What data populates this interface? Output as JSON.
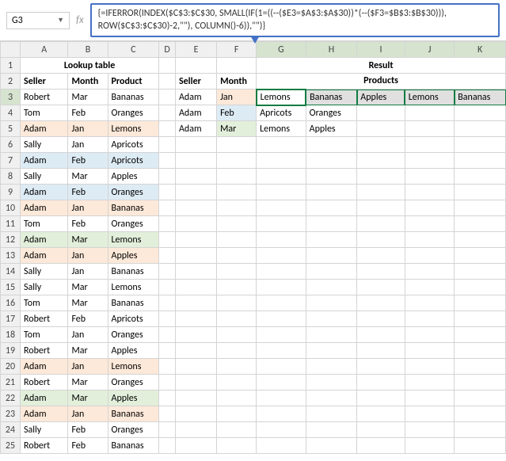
{
  "name_box": "G3",
  "formula": "{=IFERROR(INDEX($C$3:$C$30, SMALL(IF(1=((--($E3=$A$3:$A$30))*(--($F3=$B$3:$B$30))), ROW($C$3:$C$30)-2,\"\"), COLUMN()-6)),\"\")}",
  "columns": [
    "",
    "A",
    "B",
    "C",
    "D",
    "E",
    "F",
    "G",
    "H",
    "I",
    "J",
    "K"
  ],
  "title_lookup": "Lookup table",
  "title_result": "Result",
  "headers_lookup": [
    "Seller",
    "Month",
    "Product"
  ],
  "headers_result_left": [
    "Seller",
    "Month"
  ],
  "headers_result_right": "Products",
  "lookup_rows": [
    {
      "r": 3,
      "s": "Robert",
      "m": "Mar",
      "p": "Bananas",
      "hl": ""
    },
    {
      "r": 4,
      "s": "Tom",
      "m": "Feb",
      "p": "Oranges",
      "hl": ""
    },
    {
      "r": 5,
      "s": "Adam",
      "m": "Jan",
      "p": "Lemons",
      "hl": "hl-orange"
    },
    {
      "r": 6,
      "s": "Sally",
      "m": "Jan",
      "p": "Apricots",
      "hl": ""
    },
    {
      "r": 7,
      "s": "Adam",
      "m": "Feb",
      "p": "Apricots",
      "hl": "hl-blue"
    },
    {
      "r": 8,
      "s": "Sally",
      "m": "Mar",
      "p": "Apples",
      "hl": ""
    },
    {
      "r": 9,
      "s": "Adam",
      "m": "Feb",
      "p": "Oranges",
      "hl": "hl-blue"
    },
    {
      "r": 10,
      "s": "Adam",
      "m": "Jan",
      "p": "Bananas",
      "hl": "hl-orange"
    },
    {
      "r": 11,
      "s": "Tom",
      "m": "Feb",
      "p": "Oranges",
      "hl": ""
    },
    {
      "r": 12,
      "s": "Adam",
      "m": "Mar",
      "p": "Lemons",
      "hl": "hl-green"
    },
    {
      "r": 13,
      "s": "Adam",
      "m": "Jan",
      "p": "Apples",
      "hl": "hl-orange"
    },
    {
      "r": 14,
      "s": "Sally",
      "m": "Jan",
      "p": "Bananas",
      "hl": ""
    },
    {
      "r": 15,
      "s": "Sally",
      "m": "Mar",
      "p": "Lemons",
      "hl": ""
    },
    {
      "r": 16,
      "s": "Tom",
      "m": "Mar",
      "p": "Bananas",
      "hl": ""
    },
    {
      "r": 17,
      "s": "Robert",
      "m": "Feb",
      "p": "Apricots",
      "hl": ""
    },
    {
      "r": 18,
      "s": "Tom",
      "m": "Jan",
      "p": "Oranges",
      "hl": ""
    },
    {
      "r": 19,
      "s": "Robert",
      "m": "Mar",
      "p": "Apples",
      "hl": ""
    },
    {
      "r": 20,
      "s": "Adam",
      "m": "Jan",
      "p": "Lemons",
      "hl": "hl-orange"
    },
    {
      "r": 21,
      "s": "Robert",
      "m": "Mar",
      "p": "Oranges",
      "hl": ""
    },
    {
      "r": 22,
      "s": "Adam",
      "m": "Mar",
      "p": "Apples",
      "hl": "hl-green"
    },
    {
      "r": 23,
      "s": "Adam",
      "m": "Jan",
      "p": "Bananas",
      "hl": "hl-orange"
    },
    {
      "r": 24,
      "s": "Sally",
      "m": "Feb",
      "p": "Oranges",
      "hl": ""
    },
    {
      "r": 25,
      "s": "Robert",
      "m": "Feb",
      "p": "Bananas",
      "hl": ""
    }
  ],
  "result_rows": [
    {
      "r": 3,
      "s": "Adam",
      "m": "Jan",
      "mhl": "hl-orange",
      "p": [
        "Lemons",
        "Bananas",
        "Apples",
        "Lemons",
        "Bananas"
      ]
    },
    {
      "r": 4,
      "s": "Adam",
      "m": "Feb",
      "mhl": "hl-blue",
      "p": [
        "Apricots",
        "Oranges",
        "",
        "",
        ""
      ]
    },
    {
      "r": 5,
      "s": "Adam",
      "m": "Mar",
      "mhl": "hl-green",
      "p": [
        "Lemons",
        "Apples",
        "",
        "",
        ""
      ]
    }
  ],
  "selected_cols": [
    "G",
    "H",
    "I",
    "J",
    "K"
  ],
  "selected_row": 3
}
